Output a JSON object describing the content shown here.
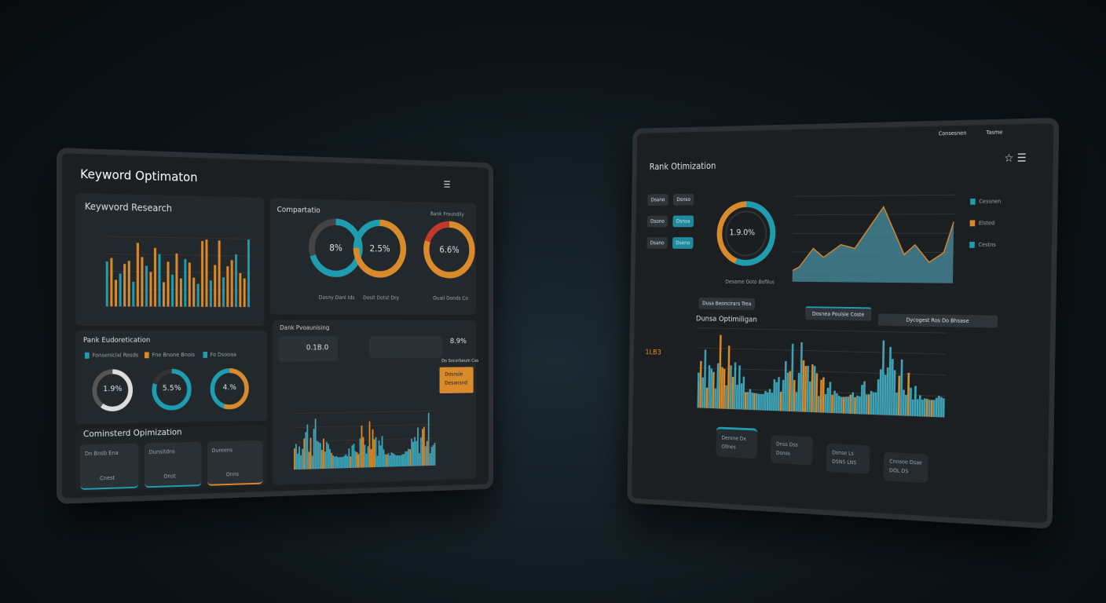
{
  "left_tablet": {
    "title": "Keyword Optimaton",
    "research": {
      "title": "Keywvord Research"
    },
    "comparison": {
      "title": "Compartatio",
      "subtitle": "Bank Froundily",
      "donuts": [
        {
          "value": "8%",
          "caption": "Dasny Danl Ids"
        },
        {
          "value": "2.5%",
          "caption": "Dosit Dotst Dry"
        },
        {
          "value": "6.6%",
          "caption": "Ouail Donds Co"
        }
      ]
    },
    "rank": {
      "title": "Pank Eudoretication",
      "legend": [
        "Fonseniclal Rosds",
        "Fne Bnone Bnois",
        "Fo Dsooaa"
      ],
      "donuts": [
        "1.9%",
        "5.5%",
        "4.%"
      ]
    },
    "optimization": {
      "title": "Cominsterd Opimization",
      "cards": [
        {
          "title": "Dn Bnsb Ena",
          "button": "Cnest"
        },
        {
          "title": "Dunsitdns",
          "button": "Onst"
        },
        {
          "title": "Dureens",
          "button": "Onns"
        }
      ]
    },
    "ranking": {
      "title": "Dank Pvoaunising",
      "stats": [
        "0.1B.0",
        "8.9%"
      ],
      "callout": "Do Socorbeum Cas",
      "callout_items": [
        "Dosnsie",
        "Desansnd"
      ]
    }
  },
  "right_tablet": {
    "nav": [
      "Consesnen",
      "Tasme"
    ],
    "title": "Rank Otimization",
    "donut": {
      "value": "1.9.0%",
      "caption": "Desame Goto Bofilus"
    },
    "buttons": [
      "Dsano",
      "Dsnso",
      "Dsono",
      "Dsnsa",
      "Dsano",
      "Dseno"
    ],
    "legend": [
      "Cessnen",
      "Elsted",
      "Cestns"
    ],
    "action": "Dusa Beoncirars Trea",
    "tabs": [
      "Dosnea Pouisie Coste",
      "Dycogest Ros Do Bhsase"
    ],
    "chart_title": "Dunsa Optimiligan",
    "badge": "1LB3",
    "cards": [
      {
        "title": "Derone Dx",
        "value": "Ollnes"
      },
      {
        "title": "Dnss Dss",
        "value": "Dsnss"
      },
      {
        "title": "Dsnse Ls",
        "value": "DSNS LNS"
      },
      {
        "title": "Cnnsoe Dsae",
        "value": "DOL DS"
      }
    ]
  }
}
